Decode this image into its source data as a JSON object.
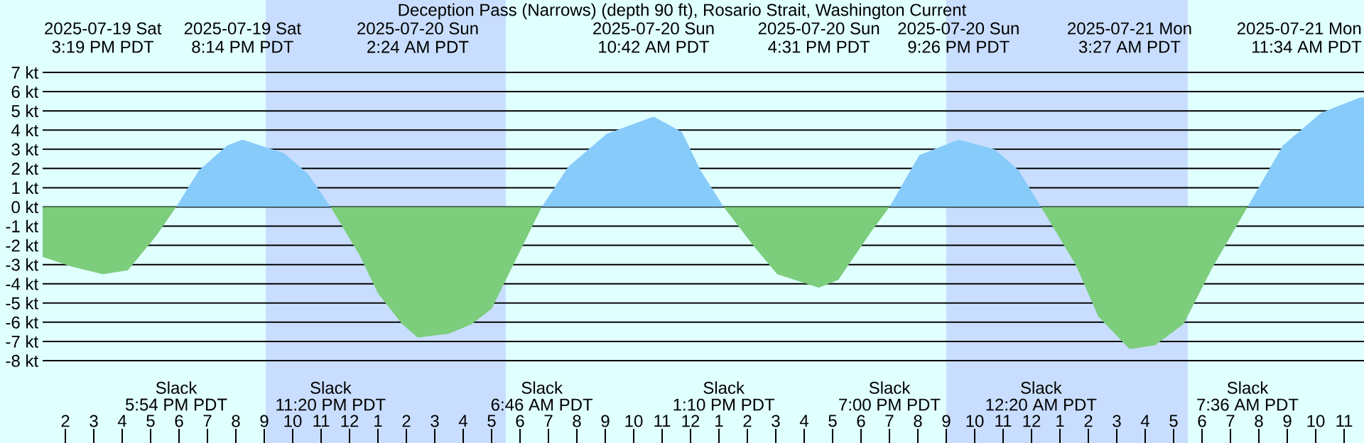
{
  "chart_data": {
    "type": "area",
    "title": "Deception Pass (Narrows) (depth 90 ft), Rosario Strait, Washington Current",
    "x": [
      "2025-07-19T13:12",
      "2025-07-19T14:12",
      "2025-07-19T15:19",
      "2025-07-19T16:12",
      "2025-07-19T17:12",
      "2025-07-19T17:54",
      "2025-07-19T18:42",
      "2025-07-19T19:42",
      "2025-07-19T20:14",
      "2025-07-19T21:42",
      "2025-07-19T22:33",
      "2025-07-19T23:20",
      "2025-07-20T00:21",
      "2025-07-20T01:00",
      "2025-07-20T01:51",
      "2025-07-20T02:24",
      "2025-07-20T03:30",
      "2025-07-20T04:18",
      "2025-07-20T05:00",
      "2025-07-20T05:42",
      "2025-07-20T06:46",
      "2025-07-20T07:42",
      "2025-07-20T09:03",
      "2025-07-20T10:42",
      "2025-07-20T11:42",
      "2025-07-20T12:21",
      "2025-07-20T13:10",
      "2025-07-20T14:12",
      "2025-07-20T15:03",
      "2025-07-20T16:31",
      "2025-07-20T17:12",
      "2025-07-20T18:21",
      "2025-07-20T19:00",
      "2025-07-20T20:03",
      "2025-07-20T21:26",
      "2025-07-20T22:42",
      "2025-07-20T23:33",
      "2025-07-21T00:20",
      "2025-07-21T01:33",
      "2025-07-21T02:21",
      "2025-07-21T03:27",
      "2025-07-21T04:21",
      "2025-07-21T05:21",
      "2025-07-21T06:21",
      "2025-07-21T07:36",
      "2025-07-21T08:51",
      "2025-07-21T10:12",
      "2025-07-21T11:34",
      "2025-07-21T11:42"
    ],
    "series": [
      {
        "color": "#87cbfa",
        "values": [
          0,
          0,
          0,
          0,
          0,
          0,
          1.9,
          3.2,
          3.5,
          2.8,
          1.7,
          0,
          0,
          0,
          0,
          0,
          0,
          0,
          0,
          0,
          0,
          2.1,
          3.8,
          4.7,
          3.9,
          1.9,
          0,
          0,
          0,
          0,
          0,
          0,
          0,
          2.7,
          3.5,
          3.0,
          1.9,
          0,
          0,
          0,
          0,
          0,
          0,
          0,
          0,
          3.2,
          4.9,
          5.7,
          5.7
        ]
      },
      {
        "color": "#7ccd7c",
        "values": [
          -2.6,
          -3.1,
          -3.5,
          -3.3,
          -1.5,
          0,
          0,
          0,
          0,
          0,
          0,
          0,
          -2.5,
          -4.5,
          -6.1,
          -6.8,
          -6.6,
          -6.1,
          -5.3,
          -3.2,
          0,
          0,
          0,
          0,
          0,
          0,
          0,
          -2.0,
          -3.5,
          -4.2,
          -3.8,
          -1.3,
          0,
          0,
          0,
          0,
          0,
          0,
          -3.0,
          -5.7,
          -7.4,
          -7.2,
          -6.1,
          -3.2,
          0,
          0,
          0,
          0,
          0
        ]
      }
    ],
    "xlim": [
      "2025-07-19T13:12",
      "2025-07-21T11:42"
    ],
    "ylim": [
      -8,
      7
    ],
    "xticks": [
      {
        "value": "2025-07-19T14:00",
        "label": "2"
      },
      {
        "value": "2025-07-19T15:00",
        "label": "3"
      },
      {
        "value": "2025-07-19T16:00",
        "label": "4"
      },
      {
        "value": "2025-07-19T17:00",
        "label": "5"
      },
      {
        "value": "2025-07-19T18:00",
        "label": "6"
      },
      {
        "value": "2025-07-19T19:00",
        "label": "7"
      },
      {
        "value": "2025-07-19T20:00",
        "label": "8"
      },
      {
        "value": "2025-07-19T21:00",
        "label": "9"
      },
      {
        "value": "2025-07-19T22:00",
        "label": "10"
      },
      {
        "value": "2025-07-19T23:00",
        "label": "11"
      },
      {
        "value": "2025-07-20T00:00",
        "label": "12"
      },
      {
        "value": "2025-07-20T01:00",
        "label": "1"
      },
      {
        "value": "2025-07-20T02:00",
        "label": "2"
      },
      {
        "value": "2025-07-20T03:00",
        "label": "3"
      },
      {
        "value": "2025-07-20T04:00",
        "label": "4"
      },
      {
        "value": "2025-07-20T05:00",
        "label": "5"
      },
      {
        "value": "2025-07-20T06:00",
        "label": "6"
      },
      {
        "value": "2025-07-20T07:00",
        "label": "7"
      },
      {
        "value": "2025-07-20T08:00",
        "label": "8"
      },
      {
        "value": "2025-07-20T09:00",
        "label": "9"
      },
      {
        "value": "2025-07-20T10:00",
        "label": "10"
      },
      {
        "value": "2025-07-20T11:00",
        "label": "11"
      },
      {
        "value": "2025-07-20T12:00",
        "label": "12"
      },
      {
        "value": "2025-07-20T13:00",
        "label": "1"
      },
      {
        "value": "2025-07-20T14:00",
        "label": "2"
      },
      {
        "value": "2025-07-20T15:00",
        "label": "3"
      },
      {
        "value": "2025-07-20T16:00",
        "label": "4"
      },
      {
        "value": "2025-07-20T17:00",
        "label": "5"
      },
      {
        "value": "2025-07-20T18:00",
        "label": "6"
      },
      {
        "value": "2025-07-20T19:00",
        "label": "7"
      },
      {
        "value": "2025-07-20T20:00",
        "label": "8"
      },
      {
        "value": "2025-07-20T21:00",
        "label": "9"
      },
      {
        "value": "2025-07-20T22:00",
        "label": "10"
      },
      {
        "value": "2025-07-20T23:00",
        "label": "11"
      },
      {
        "value": "2025-07-21T00:00",
        "label": "12"
      },
      {
        "value": "2025-07-21T01:00",
        "label": "1"
      },
      {
        "value": "2025-07-21T02:00",
        "label": "2"
      },
      {
        "value": "2025-07-21T03:00",
        "label": "3"
      },
      {
        "value": "2025-07-21T04:00",
        "label": "4"
      },
      {
        "value": "2025-07-21T05:00",
        "label": "5"
      },
      {
        "value": "2025-07-21T06:00",
        "label": "6"
      },
      {
        "value": "2025-07-21T07:00",
        "label": "7"
      },
      {
        "value": "2025-07-21T08:00",
        "label": "8"
      },
      {
        "value": "2025-07-21T09:00",
        "label": "9"
      },
      {
        "value": "2025-07-21T10:00",
        "label": "10"
      },
      {
        "value": "2025-07-21T11:00",
        "label": "11"
      }
    ],
    "yticks": [
      {
        "value": 7,
        "label": "7 kt"
      },
      {
        "value": 6,
        "label": "6 kt"
      },
      {
        "value": 5,
        "label": "5 kt"
      },
      {
        "value": 4,
        "label": "4 kt"
      },
      {
        "value": 3,
        "label": "3 kt"
      },
      {
        "value": 2,
        "label": "2 kt"
      },
      {
        "value": 1,
        "label": "1 kt"
      },
      {
        "value": 0,
        "label": "0 kt"
      },
      {
        "value": -1,
        "label": "-1 kt"
      },
      {
        "value": -2,
        "label": "-2 kt"
      },
      {
        "value": -3,
        "label": "-3 kt"
      },
      {
        "value": -4,
        "label": "-4 kt"
      },
      {
        "value": -5,
        "label": "-5 kt"
      },
      {
        "value": -6,
        "label": "-6 kt"
      },
      {
        "value": -7,
        "label": "-7 kt"
      },
      {
        "value": -8,
        "label": "-8 kt"
      }
    ],
    "grid": "y",
    "bands": [
      {
        "axis": "x",
        "from": "2025-07-19T21:03",
        "to": "2025-07-20T05:30",
        "color": "#c9deff"
      },
      {
        "axis": "x",
        "from": "2025-07-20T21:00",
        "to": "2025-07-21T05:30",
        "color": "#c9deff"
      }
    ],
    "annotations": [
      "2025-07-19 Sat",
      "3:19 PM PDT",
      "2025-07-19 Sat",
      "8:14 PM PDT",
      "2025-07-20 Sun",
      "2:24 AM PDT",
      "2025-07-20 Sun",
      "10:42 AM PDT",
      "2025-07-20 Sun",
      "4:31 PM PDT",
      "2025-07-20 Sun",
      "9:26 PM PDT",
      "2025-07-21 Mon",
      "3:27 AM PDT",
      "2025-07-21 Mon",
      "11:34 AM PDT",
      "Slack",
      "5:54 PM PDT",
      "Slack",
      "11:20 PM PDT",
      "Slack",
      "6:46 AM PDT",
      "Slack",
      "1:10 PM PDT",
      "Slack",
      "7:00 PM PDT",
      "Slack",
      "12:20 AM PDT",
      "Slack",
      "7:36 AM PDT"
    ]
  }
}
